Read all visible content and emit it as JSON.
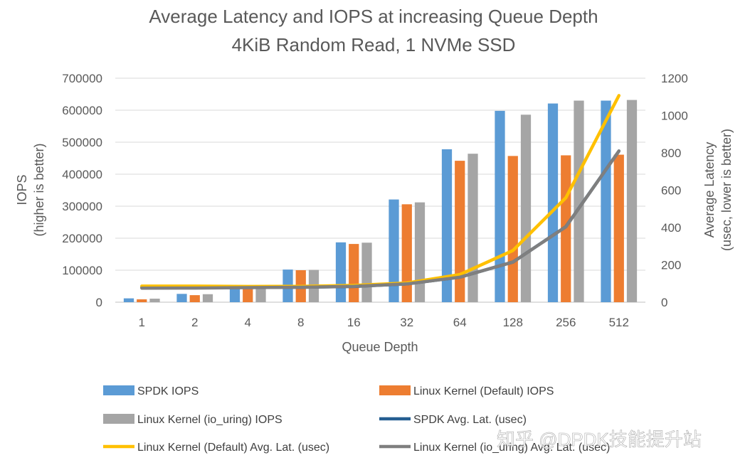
{
  "chart_data": {
    "type": "bar+line",
    "title": "Average Latency and IOPS at increasing Queue Depth",
    "subtitle": "4KiB Random Read, 1 NVMe SSD",
    "xlabel": "Queue Depth",
    "ylabel_left": [
      "IOPS",
      "(higher is better)"
    ],
    "ylabel_right": [
      "Average Latency",
      "(usec, lower is better)"
    ],
    "categories": [
      "1",
      "2",
      "4",
      "8",
      "16",
      "32",
      "64",
      "128",
      "256",
      "512"
    ],
    "ylim_left": [
      0,
      700000
    ],
    "yticks_left": [
      "0",
      "100000",
      "200000",
      "300000",
      "400000",
      "500000",
      "600000",
      "700000"
    ],
    "ylim_right": [
      0,
      1200
    ],
    "yticks_right": [
      "0",
      "200",
      "400",
      "600",
      "800",
      "1000",
      "1200"
    ],
    "bar_series": [
      {
        "name": "SPDK IOPS",
        "color": "#5b9bd5",
        "values": [
          12000,
          26000,
          49000,
          102000,
          187000,
          321000,
          478000,
          598000,
          621000,
          630000
        ]
      },
      {
        "name": "Linux Kernel (Default) IOPS",
        "color": "#ed7d31",
        "values": [
          9000,
          22000,
          42000,
          100000,
          182000,
          306000,
          442000,
          457000,
          459000,
          461000
        ]
      },
      {
        "name": "Linux Kernel (io_uring) IOPS",
        "color": "#a5a5a5",
        "values": [
          11000,
          25000,
          48000,
          101000,
          186000,
          312000,
          464000,
          586000,
          630000,
          632000
        ]
      }
    ],
    "line_series": [
      {
        "name": "SPDK Avg. Lat. (usec)",
        "color": "#255e91",
        "values": [
          80,
          79,
          80,
          80,
          84,
          98,
          134,
          215,
          405,
          810
        ]
      },
      {
        "name": "Linux Kernel (Default) Avg. Lat. (usec)",
        "color": "#ffc000",
        "values": [
          86,
          86,
          84,
          85,
          90,
          103,
          148,
          277,
          560,
          1107
        ]
      },
      {
        "name": "Linux Kernel (io_uring) Avg. Lat. (usec)",
        "color": "#7f7f7f",
        "values": [
          75,
          76,
          78,
          80,
          85,
          98,
          134,
          215,
          404,
          810
        ]
      }
    ],
    "legend_position": "bottom",
    "grid": true
  },
  "watermark": "知乎 @DPDK技能提升站"
}
